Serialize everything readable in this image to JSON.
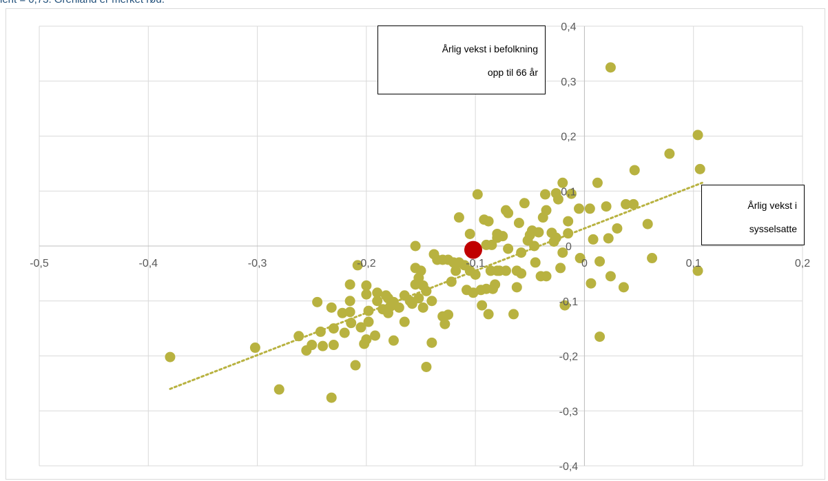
{
  "caption": "ient = 0,73. Grenland er merket rød.",
  "chart_data": {
    "type": "scatter",
    "xlim": [
      -0.5,
      0.2
    ],
    "ylim": [
      -0.4,
      0.4
    ],
    "x_ticks": [
      "-0,5",
      "-0,4",
      "-0,3",
      "-0,2",
      "-0,1",
      "0",
      "0,1",
      "0,2"
    ],
    "y_ticks": [
      "0,4",
      "0,3",
      "0,2",
      "0,1",
      "0",
      "-0,1",
      "-0,2",
      "-0,3",
      "-0,4"
    ],
    "ylabel_lines": [
      "Årlig vekst i befolkning",
      "opp til 66 år"
    ],
    "xlabel_lines": [
      "Årlig vekst i",
      "sysselsatte"
    ],
    "grid": true,
    "colors": {
      "points": "#b8b240",
      "highlight": "#c00000",
      "trend": "#b8b240",
      "grid": "#d9d9d9",
      "caption": "#1f4e79"
    },
    "highlight": {
      "name": "Grenland",
      "x": -0.102,
      "y": -0.007
    },
    "trendline": {
      "x": [
        -0.38,
        0.108
      ],
      "y": [
        -0.26,
        0.115
      ],
      "style": "dotted"
    },
    "points": [
      [
        -0.38,
        -0.202
      ],
      [
        -0.302,
        -0.185
      ],
      [
        -0.28,
        -0.261
      ],
      [
        -0.262,
        -0.164
      ],
      [
        -0.255,
        -0.19
      ],
      [
        -0.25,
        -0.18
      ],
      [
        -0.245,
        -0.102
      ],
      [
        -0.242,
        -0.156
      ],
      [
        -0.24,
        -0.182
      ],
      [
        -0.232,
        -0.112
      ],
      [
        -0.232,
        -0.276
      ],
      [
        -0.23,
        -0.18
      ],
      [
        -0.23,
        -0.15
      ],
      [
        -0.222,
        -0.122
      ],
      [
        -0.22,
        -0.158
      ],
      [
        -0.215,
        -0.1
      ],
      [
        -0.215,
        -0.07
      ],
      [
        -0.215,
        -0.12
      ],
      [
        -0.214,
        -0.14
      ],
      [
        -0.21,
        -0.217
      ],
      [
        -0.208,
        -0.035
      ],
      [
        -0.205,
        -0.148
      ],
      [
        -0.202,
        -0.178
      ],
      [
        -0.2,
        -0.072
      ],
      [
        -0.2,
        -0.088
      ],
      [
        -0.2,
        -0.17
      ],
      [
        -0.198,
        -0.118
      ],
      [
        -0.198,
        -0.138
      ],
      [
        -0.192,
        -0.163
      ],
      [
        -0.19,
        -0.1
      ],
      [
        -0.19,
        -0.085
      ],
      [
        -0.185,
        -0.115
      ],
      [
        -0.182,
        -0.09
      ],
      [
        -0.18,
        -0.095
      ],
      [
        -0.18,
        -0.122
      ],
      [
        -0.178,
        -0.11
      ],
      [
        -0.175,
        -0.172
      ],
      [
        -0.175,
        -0.102
      ],
      [
        -0.17,
        -0.112
      ],
      [
        -0.165,
        -0.09
      ],
      [
        -0.165,
        -0.138
      ],
      [
        -0.16,
        -0.1
      ],
      [
        -0.158,
        -0.105
      ],
      [
        -0.155,
        -0.04
      ],
      [
        -0.155,
        0.0
      ],
      [
        -0.155,
        -0.07
      ],
      [
        -0.152,
        -0.058
      ],
      [
        -0.152,
        -0.095
      ],
      [
        -0.15,
        -0.045
      ],
      [
        -0.148,
        -0.072
      ],
      [
        -0.148,
        -0.112
      ],
      [
        -0.145,
        -0.082
      ],
      [
        -0.145,
        -0.22
      ],
      [
        -0.14,
        -0.176
      ],
      [
        -0.14,
        -0.1
      ],
      [
        -0.138,
        -0.015
      ],
      [
        -0.135,
        -0.025
      ],
      [
        -0.13,
        -0.025
      ],
      [
        -0.13,
        -0.128
      ],
      [
        -0.128,
        -0.142
      ],
      [
        -0.125,
        -0.025
      ],
      [
        -0.125,
        -0.125
      ],
      [
        -0.122,
        -0.065
      ],
      [
        -0.12,
        -0.03
      ],
      [
        -0.118,
        -0.045
      ],
      [
        -0.115,
        0.052
      ],
      [
        -0.115,
        -0.03
      ],
      [
        -0.11,
        -0.035
      ],
      [
        -0.108,
        -0.08
      ],
      [
        -0.105,
        0.022
      ],
      [
        -0.105,
        -0.045
      ],
      [
        -0.102,
        -0.085
      ],
      [
        -0.1,
        -0.052
      ],
      [
        -0.1,
        -0.012
      ],
      [
        -0.098,
        0.094
      ],
      [
        -0.095,
        -0.08
      ],
      [
        -0.094,
        -0.108
      ],
      [
        -0.092,
        0.048
      ],
      [
        -0.09,
        0.002
      ],
      [
        -0.09,
        -0.078
      ],
      [
        -0.088,
        0.045
      ],
      [
        -0.088,
        -0.124
      ],
      [
        -0.086,
        -0.045
      ],
      [
        -0.085,
        0.002
      ],
      [
        -0.084,
        -0.078
      ],
      [
        -0.082,
        -0.07
      ],
      [
        -0.08,
        0.022
      ],
      [
        -0.08,
        0.015
      ],
      [
        -0.08,
        -0.045
      ],
      [
        -0.078,
        -0.045
      ],
      [
        -0.075,
        0.018
      ],
      [
        -0.072,
        -0.045
      ],
      [
        -0.072,
        0.065
      ],
      [
        -0.07,
        0.06
      ],
      [
        -0.07,
        -0.005
      ],
      [
        -0.065,
        -0.124
      ],
      [
        -0.062,
        -0.045
      ],
      [
        -0.062,
        -0.075
      ],
      [
        -0.06,
        0.042
      ],
      [
        -0.058,
        -0.05
      ],
      [
        -0.058,
        -0.012
      ],
      [
        -0.055,
        0.078
      ],
      [
        -0.052,
        0.01
      ],
      [
        -0.05,
        0.02
      ],
      [
        -0.048,
        0.028
      ],
      [
        -0.046,
        0.0
      ],
      [
        -0.045,
        -0.03
      ],
      [
        -0.042,
        0.025
      ],
      [
        -0.04,
        -0.055
      ],
      [
        -0.038,
        0.052
      ],
      [
        -0.036,
        0.094
      ],
      [
        -0.035,
        0.065
      ],
      [
        -0.035,
        -0.055
      ],
      [
        -0.03,
        0.024
      ],
      [
        -0.028,
        0.008
      ],
      [
        -0.026,
        0.015
      ],
      [
        -0.026,
        0.096
      ],
      [
        -0.024,
        0.085
      ],
      [
        -0.022,
        -0.04
      ],
      [
        -0.02,
        -0.012
      ],
      [
        -0.02,
        0.115
      ],
      [
        -0.018,
        -0.108
      ],
      [
        -0.015,
        0.045
      ],
      [
        -0.015,
        0.023
      ],
      [
        -0.012,
        0.095
      ],
      [
        -0.005,
        0.068
      ],
      [
        -0.004,
        -0.022
      ],
      [
        0.005,
        0.068
      ],
      [
        0.006,
        -0.068
      ],
      [
        0.008,
        0.012
      ],
      [
        0.012,
        0.115
      ],
      [
        0.014,
        -0.028
      ],
      [
        0.014,
        -0.165
      ],
      [
        0.02,
        0.072
      ],
      [
        0.022,
        0.014
      ],
      [
        0.024,
        -0.055
      ],
      [
        0.024,
        0.325
      ],
      [
        0.03,
        0.032
      ],
      [
        0.036,
        -0.075
      ],
      [
        0.038,
        0.076
      ],
      [
        0.045,
        0.076
      ],
      [
        0.046,
        0.138
      ],
      [
        0.058,
        0.04
      ],
      [
        0.062,
        -0.022
      ],
      [
        0.078,
        0.168
      ],
      [
        0.104,
        0.202
      ],
      [
        0.104,
        -0.045
      ],
      [
        0.106,
        0.14
      ]
    ]
  }
}
